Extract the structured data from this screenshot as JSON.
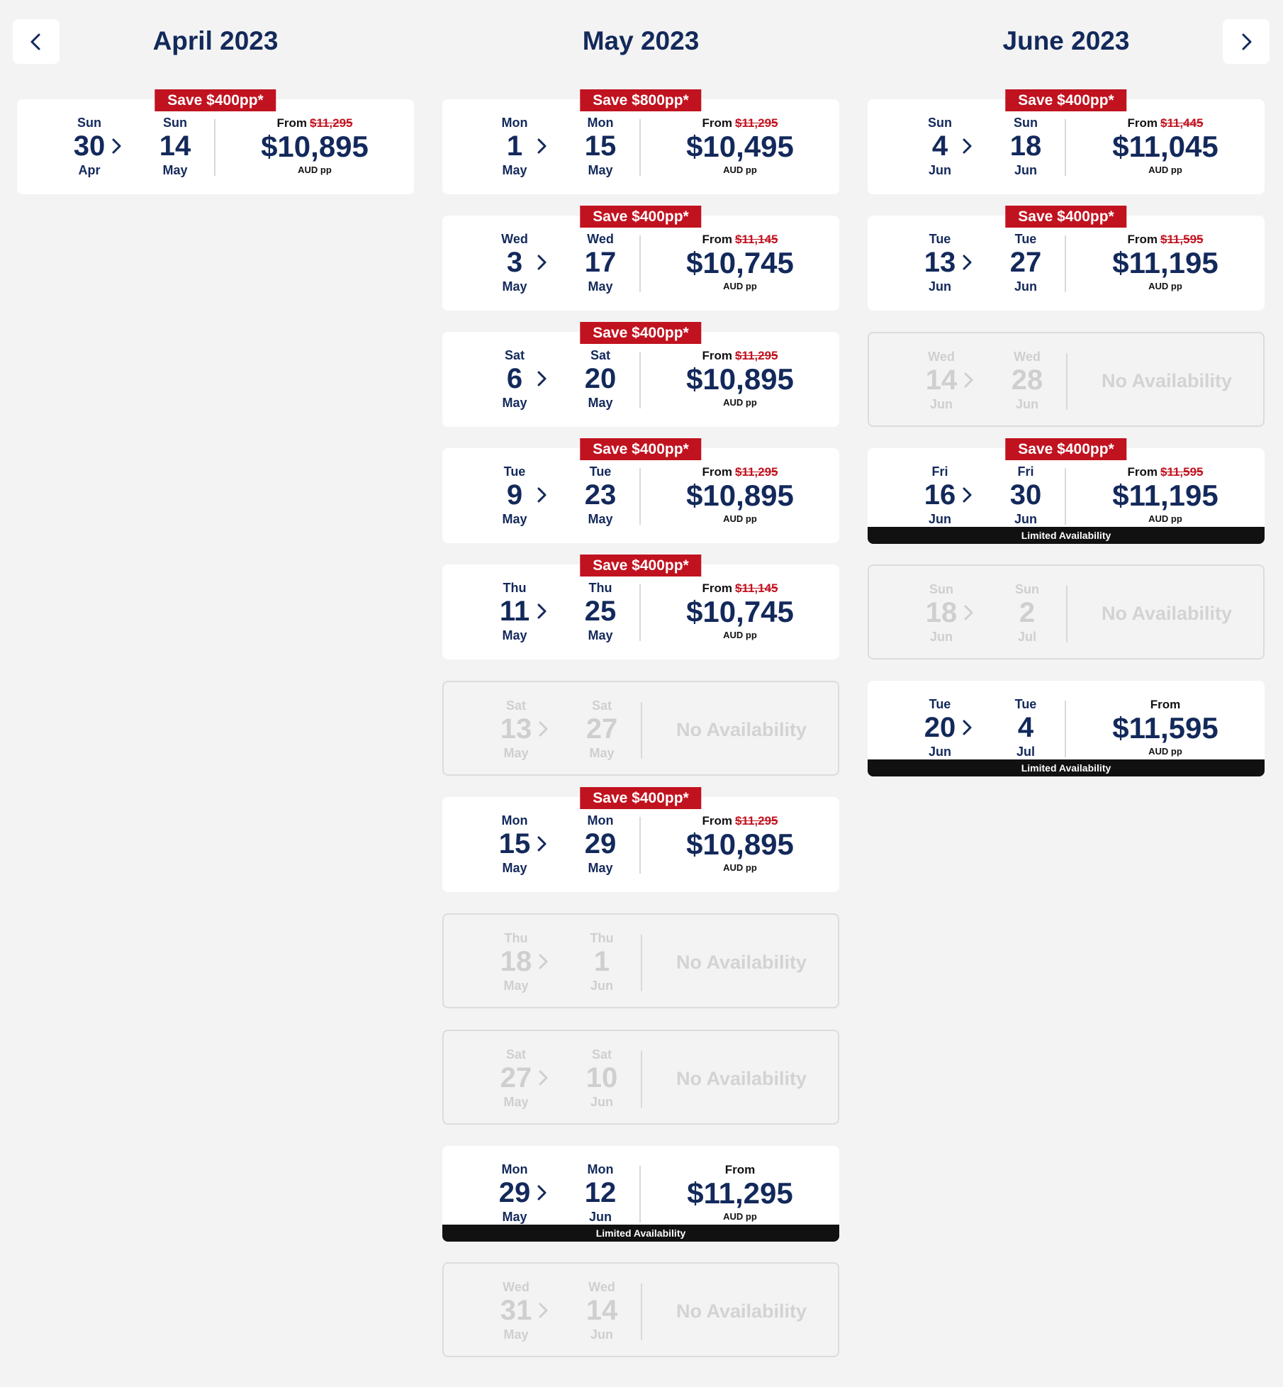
{
  "nav": {
    "prev_icon": "chevron-left-icon",
    "next_icon": "chevron-right-icon"
  },
  "colors": {
    "navy": "#13295b",
    "save_red": "#c1121f",
    "limited_black": "#111111",
    "unavailable_grey": "#d3d3d3"
  },
  "columns": [
    {
      "title": "April 2023",
      "cards": [
        {
          "save": "Save $400pp*",
          "d1": {
            "dow": "Sun",
            "day": "30",
            "mon": "Apr"
          },
          "d2": {
            "dow": "Sun",
            "day": "14",
            "mon": "May"
          },
          "from": "From",
          "was": "$11,295",
          "price": "$10,895",
          "unit": "AUD pp"
        }
      ]
    },
    {
      "title": "May 2023",
      "cards": [
        {
          "save": "Save $800pp*",
          "d1": {
            "dow": "Mon",
            "day": "1",
            "mon": "May"
          },
          "d2": {
            "dow": "Mon",
            "day": "15",
            "mon": "May"
          },
          "from": "From",
          "was": "$11,295",
          "price": "$10,495",
          "unit": "AUD pp"
        },
        {
          "save": "Save $400pp*",
          "d1": {
            "dow": "Wed",
            "day": "3",
            "mon": "May"
          },
          "d2": {
            "dow": "Wed",
            "day": "17",
            "mon": "May"
          },
          "from": "From",
          "was": "$11,145",
          "price": "$10,745",
          "unit": "AUD pp"
        },
        {
          "save": "Save $400pp*",
          "d1": {
            "dow": "Sat",
            "day": "6",
            "mon": "May"
          },
          "d2": {
            "dow": "Sat",
            "day": "20",
            "mon": "May"
          },
          "from": "From",
          "was": "$11,295",
          "price": "$10,895",
          "unit": "AUD pp"
        },
        {
          "save": "Save $400pp*",
          "d1": {
            "dow": "Tue",
            "day": "9",
            "mon": "May"
          },
          "d2": {
            "dow": "Tue",
            "day": "23",
            "mon": "May"
          },
          "from": "From",
          "was": "$11,295",
          "price": "$10,895",
          "unit": "AUD pp"
        },
        {
          "save": "Save $400pp*",
          "d1": {
            "dow": "Thu",
            "day": "11",
            "mon": "May"
          },
          "d2": {
            "dow": "Thu",
            "day": "25",
            "mon": "May"
          },
          "from": "From",
          "was": "$11,145",
          "price": "$10,745",
          "unit": "AUD pp"
        },
        {
          "na": "No Availability",
          "d1": {
            "dow": "Sat",
            "day": "13",
            "mon": "May"
          },
          "d2": {
            "dow": "Sat",
            "day": "27",
            "mon": "May"
          }
        },
        {
          "save": "Save $400pp*",
          "d1": {
            "dow": "Mon",
            "day": "15",
            "mon": "May"
          },
          "d2": {
            "dow": "Mon",
            "day": "29",
            "mon": "May"
          },
          "from": "From",
          "was": "$11,295",
          "price": "$10,895",
          "unit": "AUD pp"
        },
        {
          "na": "No Availability",
          "d1": {
            "dow": "Thu",
            "day": "18",
            "mon": "May"
          },
          "d2": {
            "dow": "Thu",
            "day": "1",
            "mon": "Jun"
          }
        },
        {
          "na": "No Availability",
          "d1": {
            "dow": "Sat",
            "day": "27",
            "mon": "May"
          },
          "d2": {
            "dow": "Sat",
            "day": "10",
            "mon": "Jun"
          }
        },
        {
          "d1": {
            "dow": "Mon",
            "day": "29",
            "mon": "May"
          },
          "d2": {
            "dow": "Mon",
            "day": "12",
            "mon": "Jun"
          },
          "from": "From",
          "price": "$11,295",
          "unit": "AUD pp",
          "limited": "Limited Availability"
        },
        {
          "na": "No Availability",
          "d1": {
            "dow": "Wed",
            "day": "31",
            "mon": "May"
          },
          "d2": {
            "dow": "Wed",
            "day": "14",
            "mon": "Jun"
          }
        }
      ]
    },
    {
      "title": "June 2023",
      "cards": [
        {
          "save": "Save $400pp*",
          "d1": {
            "dow": "Sun",
            "day": "4",
            "mon": "Jun"
          },
          "d2": {
            "dow": "Sun",
            "day": "18",
            "mon": "Jun"
          },
          "from": "From",
          "was": "$11,445",
          "price": "$11,045",
          "unit": "AUD pp"
        },
        {
          "save": "Save $400pp*",
          "d1": {
            "dow": "Tue",
            "day": "13",
            "mon": "Jun"
          },
          "d2": {
            "dow": "Tue",
            "day": "27",
            "mon": "Jun"
          },
          "from": "From",
          "was": "$11,595",
          "price": "$11,195",
          "unit": "AUD pp"
        },
        {
          "na": "No Availability",
          "d1": {
            "dow": "Wed",
            "day": "14",
            "mon": "Jun"
          },
          "d2": {
            "dow": "Wed",
            "day": "28",
            "mon": "Jun"
          }
        },
        {
          "save": "Save $400pp*",
          "d1": {
            "dow": "Fri",
            "day": "16",
            "mon": "Jun"
          },
          "d2": {
            "dow": "Fri",
            "day": "30",
            "mon": "Jun"
          },
          "from": "From",
          "was": "$11,595",
          "price": "$11,195",
          "unit": "AUD pp",
          "limited": "Limited Availability"
        },
        {
          "na": "No Availability",
          "d1": {
            "dow": "Sun",
            "day": "18",
            "mon": "Jun"
          },
          "d2": {
            "dow": "Sun",
            "day": "2",
            "mon": "Jul"
          }
        },
        {
          "d1": {
            "dow": "Tue",
            "day": "20",
            "mon": "Jun"
          },
          "d2": {
            "dow": "Tue",
            "day": "4",
            "mon": "Jul"
          },
          "from": "From",
          "price": "$11,595",
          "unit": "AUD pp",
          "limited": "Limited Availability"
        }
      ]
    }
  ]
}
